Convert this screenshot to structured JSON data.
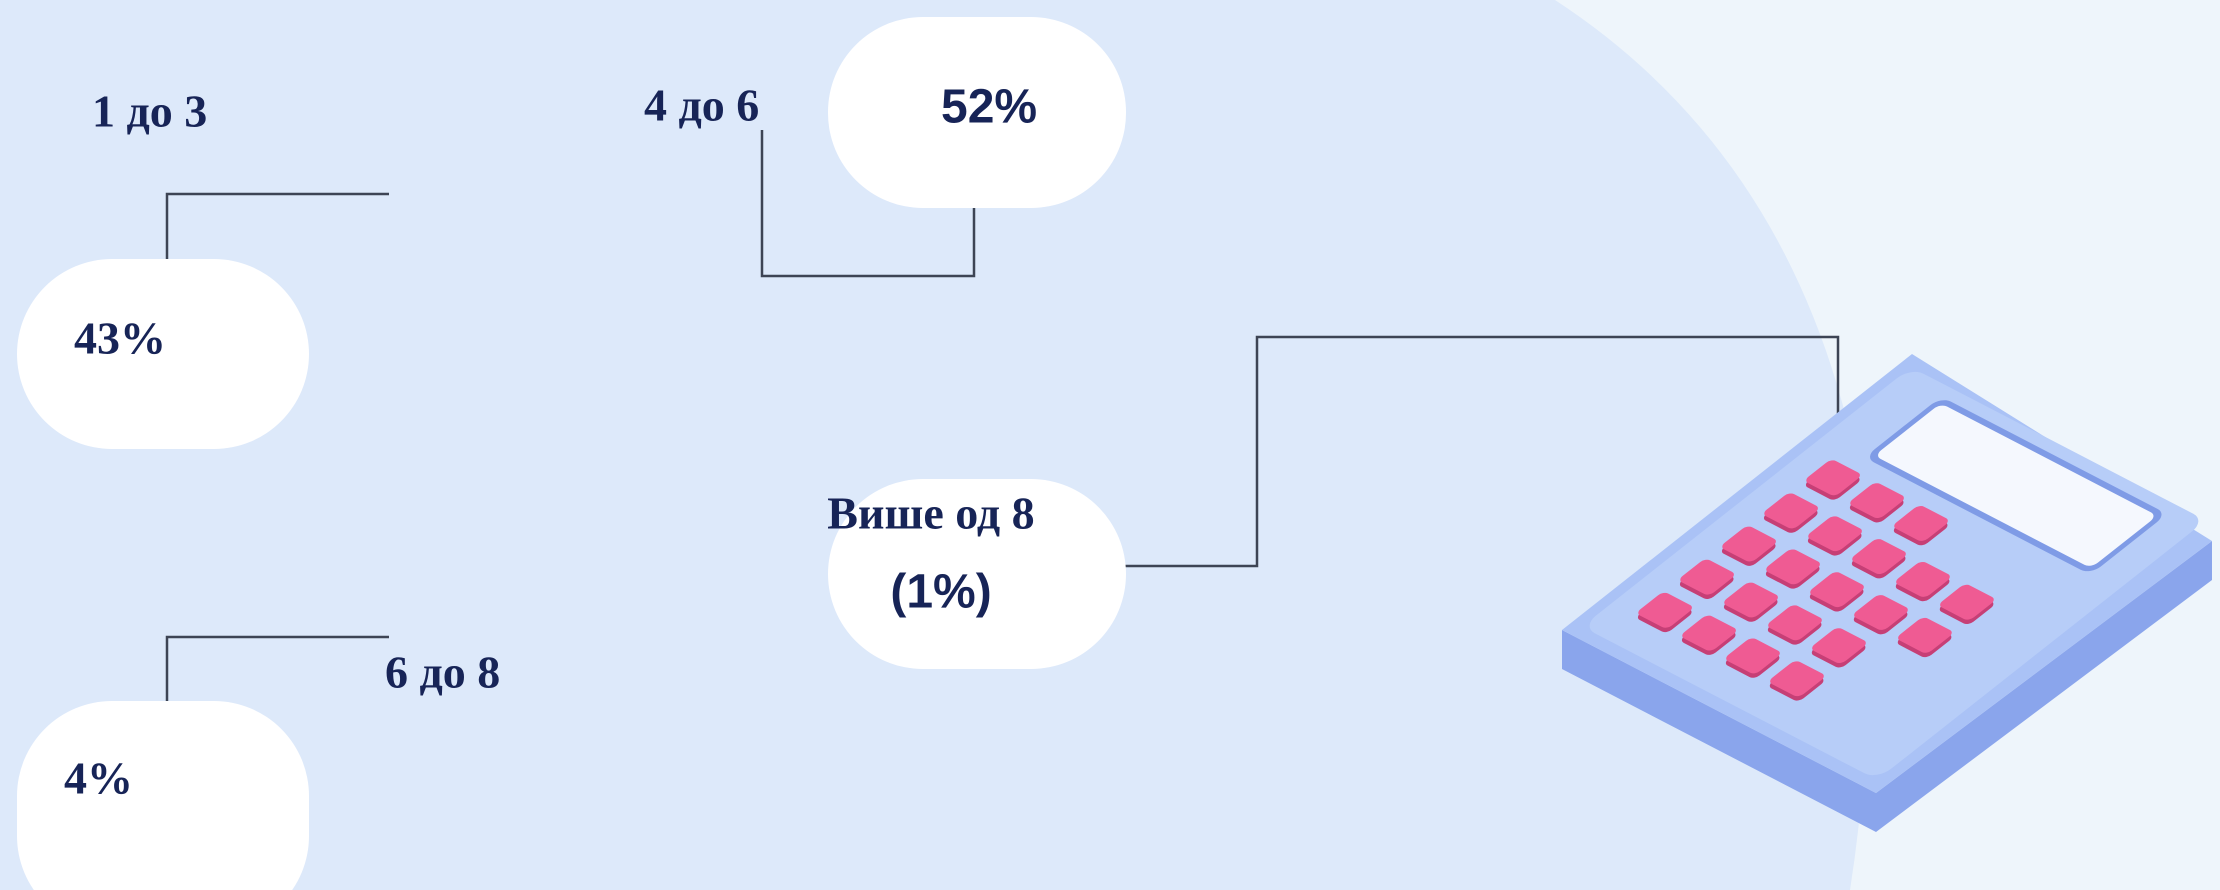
{
  "groups": [
    {
      "label": "1 до 3",
      "value": "43%"
    },
    {
      "label": "4 до 6",
      "value": "52%"
    },
    {
      "label": "6 до 8",
      "value": "4%"
    },
    {
      "label": "Више од 8",
      "value": "(1%)"
    }
  ]
}
